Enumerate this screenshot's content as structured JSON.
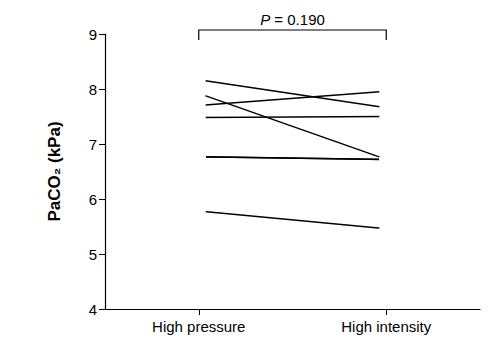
{
  "chart_data": {
    "type": "line",
    "y_label": "PaCO₂ (kPa)",
    "categories": [
      "High pressure",
      "High intensity"
    ],
    "series": [
      {
        "values": [
          8.17,
          7.66
        ]
      },
      {
        "values": [
          7.92,
          6.72
        ]
      },
      {
        "values": [
          7.7,
          7.96
        ]
      },
      {
        "values": [
          7.48,
          7.5
        ]
      },
      {
        "values": [
          6.77,
          6.72
        ]
      },
      {
        "values": [
          6.77,
          6.72
        ]
      },
      {
        "values": [
          5.78,
          5.46
        ]
      }
    ],
    "color": "#000000",
    "marker": "open_circle",
    "ylim": [
      4,
      9
    ],
    "yticks": [
      4,
      5,
      6,
      7,
      8,
      9
    ],
    "grid": false,
    "annotations": [
      {
        "text": "P = 0.190",
        "between": [
          "High pressure",
          "High intensity"
        ]
      }
    ]
  }
}
